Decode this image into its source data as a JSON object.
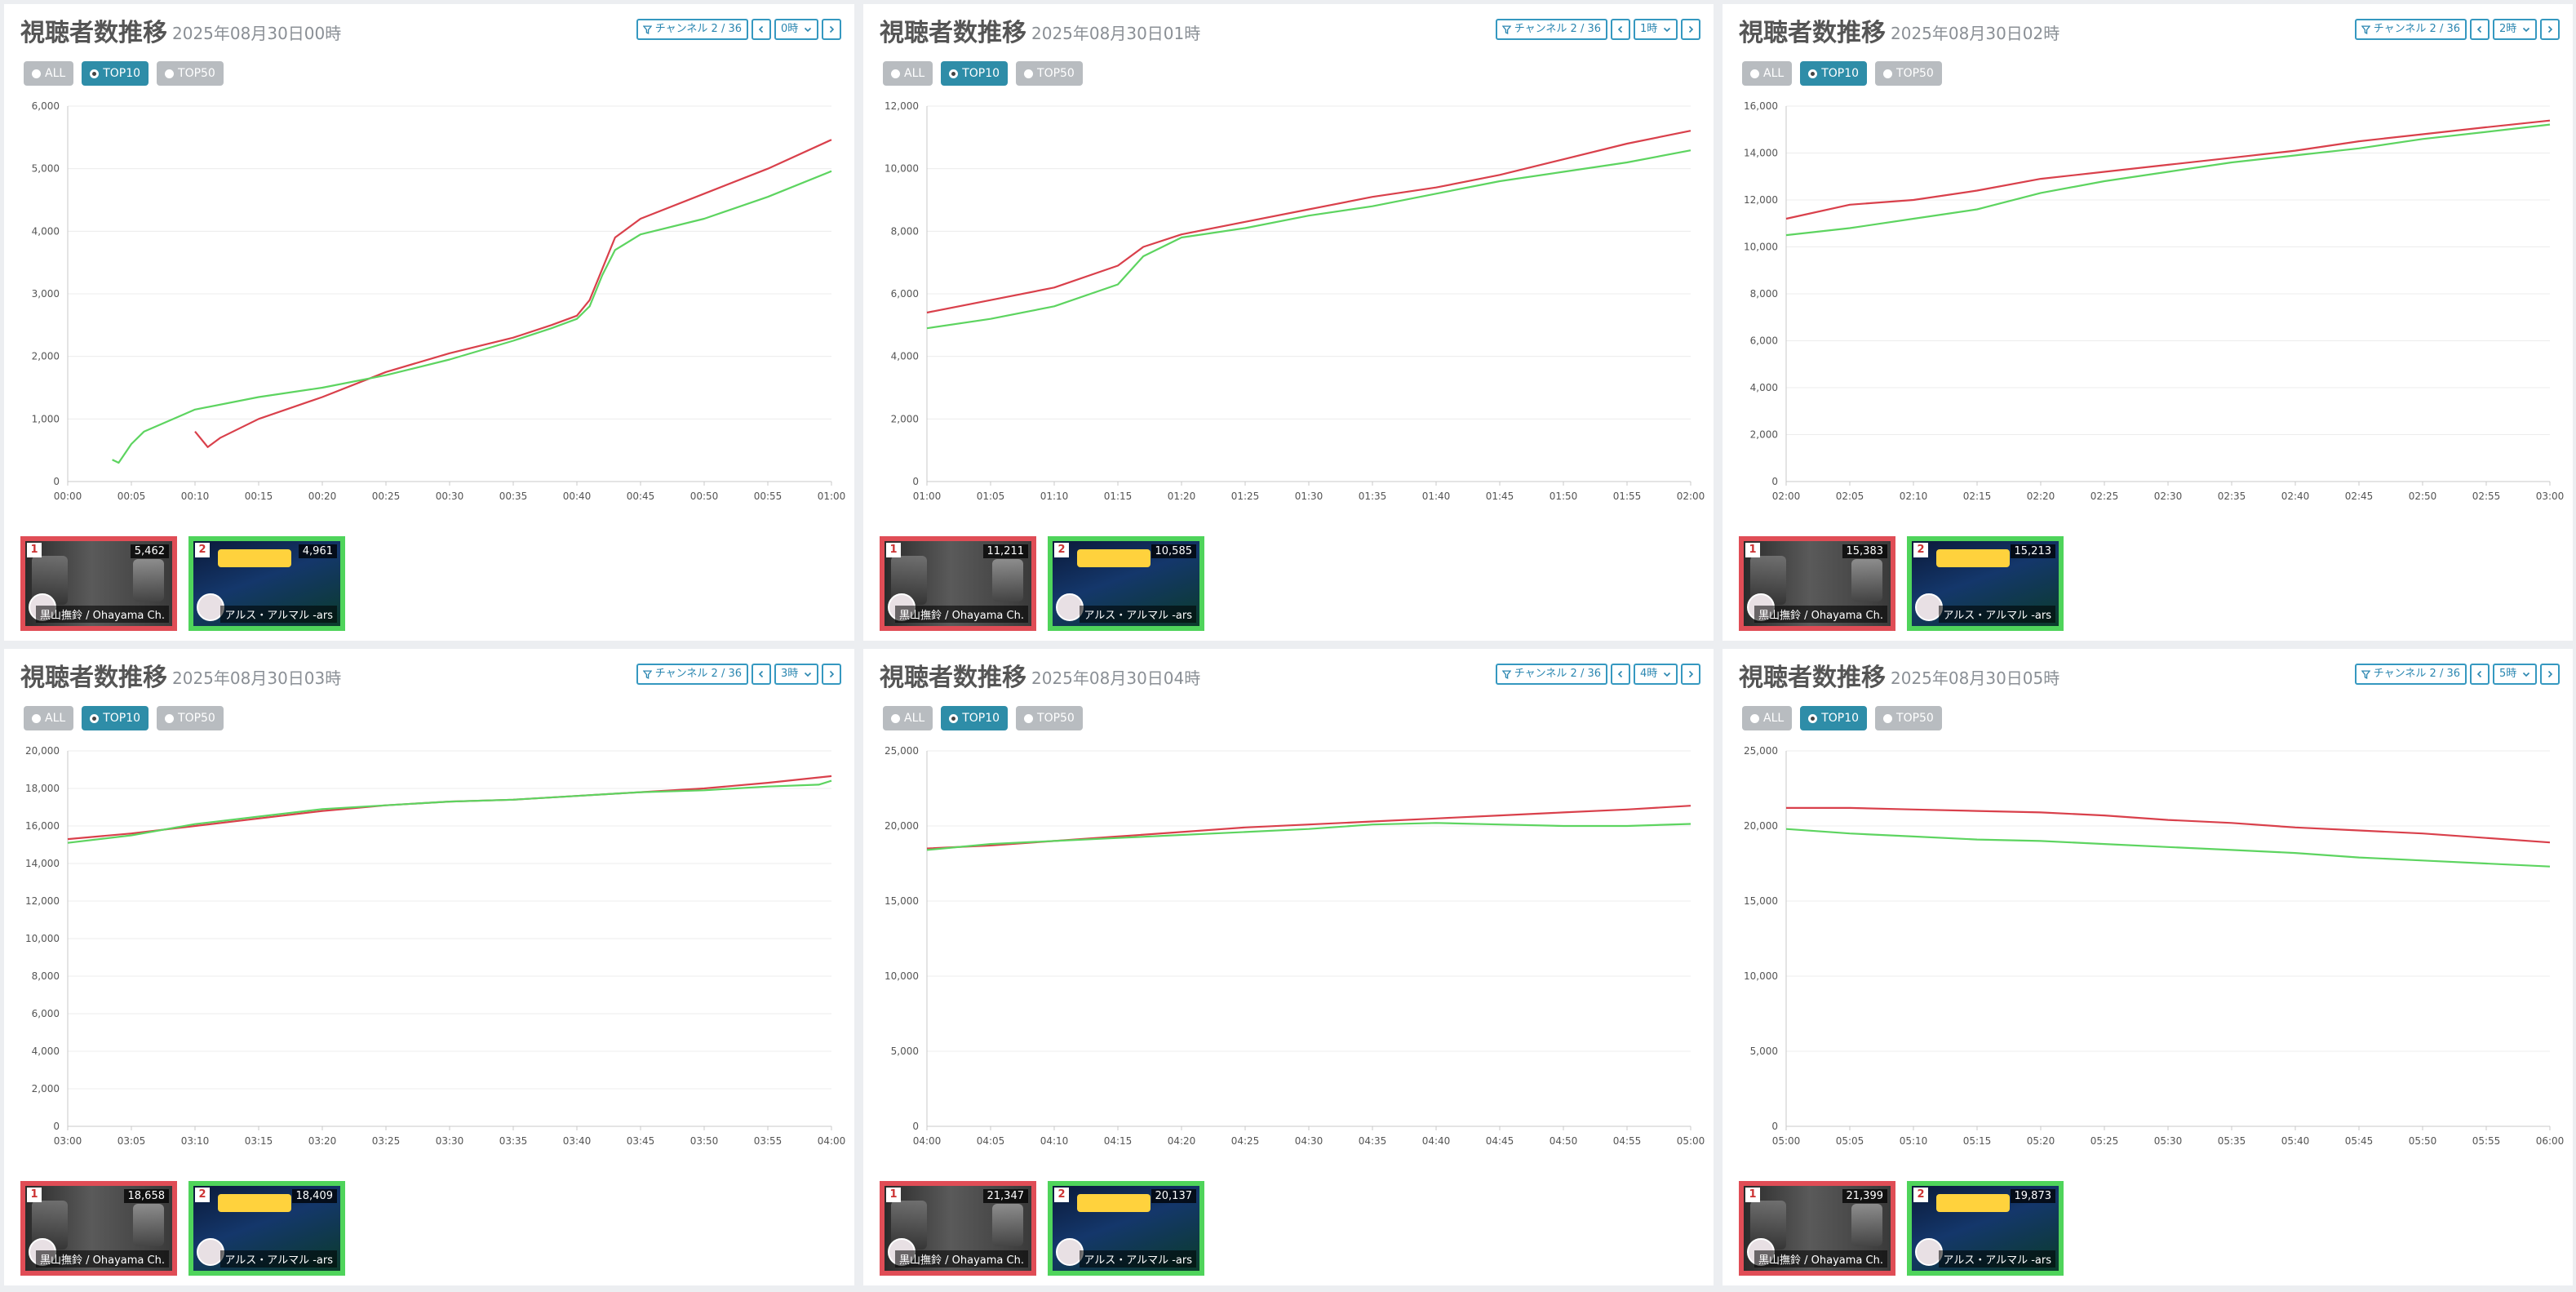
{
  "colors": {
    "series1": "#d9404b",
    "series2": "#5dd460",
    "tab_active": "#2e8da8",
    "tab_inactive": "#b8bcc0",
    "control": "#3598c0",
    "thumb1_border": "#e04d56",
    "thumb2_border": "#4fd45b"
  },
  "common": {
    "title": "視聴者数推移",
    "filter_label": "チャンネル 2 / 36",
    "filter_icon": "filter-icon",
    "prev_icon": "chevron-left-icon",
    "next_icon": "chevron-right-icon",
    "dropdown_icon": "chevron-down-icon",
    "tabs": [
      "ALL",
      "TOP10",
      "TOP50"
    ],
    "active_tab": "TOP10"
  },
  "panels": [
    {
      "date": "2025年08月30日00時",
      "hour_label": "0時",
      "channels": [
        {
          "rank": "1",
          "viewers": "5,462",
          "name": "黒山撫鈴 / Ohayama Ch."
        },
        {
          "rank": "2",
          "viewers": "4,961",
          "name": "アルス・アルマル -ars"
        }
      ]
    },
    {
      "date": "2025年08月30日01時",
      "hour_label": "1時",
      "channels": [
        {
          "rank": "1",
          "viewers": "11,211",
          "name": "黒山撫鈴 / Ohayama Ch."
        },
        {
          "rank": "2",
          "viewers": "10,585",
          "name": "アルス・アルマル -ars"
        }
      ]
    },
    {
      "date": "2025年08月30日02時",
      "hour_label": "2時",
      "channels": [
        {
          "rank": "1",
          "viewers": "15,383",
          "name": "黒山撫鈴 / Ohayama Ch."
        },
        {
          "rank": "2",
          "viewers": "15,213",
          "name": "アルス・アルマル -ars"
        }
      ]
    },
    {
      "date": "2025年08月30日03時",
      "hour_label": "3時",
      "channels": [
        {
          "rank": "1",
          "viewers": "18,658",
          "name": "黒山撫鈴 / Ohayama Ch."
        },
        {
          "rank": "2",
          "viewers": "18,409",
          "name": "アルス・アルマル -ars"
        }
      ]
    },
    {
      "date": "2025年08月30日04時",
      "hour_label": "4時",
      "channels": [
        {
          "rank": "1",
          "viewers": "21,347",
          "name": "黒山撫鈴 / Ohayama Ch."
        },
        {
          "rank": "2",
          "viewers": "20,137",
          "name": "アルス・アルマル -ars"
        }
      ]
    },
    {
      "date": "2025年08月30日05時",
      "hour_label": "5時",
      "channels": [
        {
          "rank": "1",
          "viewers": "21,399",
          "name": "黒山撫鈴 / Ohayama Ch."
        },
        {
          "rank": "2",
          "viewers": "19,873",
          "name": "アルス・アルマル -ars"
        }
      ]
    }
  ],
  "chart_data": [
    {
      "type": "line",
      "title": "視聴者数推移 2025年08月30日00時",
      "grid": true,
      "x_ticks": [
        "00:00",
        "00:05",
        "00:10",
        "00:15",
        "00:20",
        "00:25",
        "00:30",
        "00:35",
        "00:40",
        "00:45",
        "00:50",
        "00:55",
        "01:00"
      ],
      "y_ticks": [
        "0",
        "1,000",
        "2,000",
        "3,000",
        "4,000",
        "5,000",
        "6,000"
      ],
      "ylim": [
        0,
        6000
      ],
      "series": [
        {
          "color": "#d9404b",
          "x": [
            10,
            11,
            12,
            15,
            20,
            25,
            30,
            35,
            38,
            40,
            41,
            42,
            43,
            45,
            50,
            55,
            60
          ],
          "y": [
            800,
            550,
            700,
            1000,
            1350,
            1750,
            2050,
            2300,
            2500,
            2650,
            2900,
            3400,
            3900,
            4200,
            4600,
            5000,
            5462
          ]
        },
        {
          "color": "#5dd460",
          "x": [
            3.5,
            4,
            5,
            6,
            10,
            15,
            20,
            25,
            30,
            35,
            38,
            40,
            41,
            42,
            43,
            45,
            50,
            55,
            60
          ],
          "y": [
            350,
            300,
            600,
            800,
            1150,
            1350,
            1500,
            1700,
            1950,
            2250,
            2450,
            2600,
            2800,
            3300,
            3700,
            3950,
            4200,
            4550,
            4961
          ]
        }
      ]
    },
    {
      "type": "line",
      "title": "視聴者数推移 2025年08月30日01時",
      "grid": true,
      "x_ticks": [
        "01:00",
        "01:05",
        "01:10",
        "01:15",
        "01:20",
        "01:25",
        "01:30",
        "01:35",
        "01:40",
        "01:45",
        "01:50",
        "01:55",
        "02:00"
      ],
      "y_ticks": [
        "0",
        "2,000",
        "4,000",
        "6,000",
        "8,000",
        "10,000",
        "12,000"
      ],
      "ylim": [
        0,
        12000
      ],
      "series": [
        {
          "color": "#d9404b",
          "x": [
            0,
            5,
            10,
            15,
            17,
            20,
            25,
            30,
            35,
            40,
            45,
            50,
            55,
            60
          ],
          "y": [
            5400,
            5800,
            6200,
            6900,
            7500,
            7900,
            8300,
            8700,
            9100,
            9400,
            9800,
            10300,
            10800,
            11211
          ]
        },
        {
          "color": "#5dd460",
          "x": [
            0,
            5,
            10,
            15,
            17,
            20,
            25,
            30,
            35,
            40,
            45,
            50,
            55,
            60
          ],
          "y": [
            4900,
            5200,
            5600,
            6300,
            7200,
            7800,
            8100,
            8500,
            8800,
            9200,
            9600,
            9900,
            10200,
            10585
          ]
        }
      ]
    },
    {
      "type": "line",
      "title": "視聴者数推移 2025年08月30日02時",
      "grid": true,
      "x_ticks": [
        "02:00",
        "02:05",
        "02:10",
        "02:15",
        "02:20",
        "02:25",
        "02:30",
        "02:35",
        "02:40",
        "02:45",
        "02:50",
        "02:55",
        "03:00"
      ],
      "y_ticks": [
        "0",
        "2,000",
        "4,000",
        "6,000",
        "8,000",
        "10,000",
        "12,000",
        "14,000",
        "16,000"
      ],
      "ylim": [
        0,
        16000
      ],
      "series": [
        {
          "color": "#d9404b",
          "x": [
            0,
            5,
            10,
            15,
            20,
            25,
            30,
            35,
            40,
            45,
            50,
            55,
            60
          ],
          "y": [
            11200,
            11800,
            12000,
            12400,
            12900,
            13200,
            13500,
            13800,
            14100,
            14500,
            14800,
            15100,
            15383
          ]
        },
        {
          "color": "#5dd460",
          "x": [
            0,
            5,
            10,
            15,
            20,
            25,
            30,
            35,
            40,
            45,
            50,
            55,
            60
          ],
          "y": [
            10500,
            10800,
            11200,
            11600,
            12300,
            12800,
            13200,
            13600,
            13900,
            14200,
            14600,
            14900,
            15213
          ]
        }
      ]
    },
    {
      "type": "line",
      "title": "視聴者数推移 2025年08月30日03時",
      "grid": true,
      "x_ticks": [
        "03:00",
        "03:05",
        "03:10",
        "03:15",
        "03:20",
        "03:25",
        "03:30",
        "03:35",
        "03:40",
        "03:45",
        "03:50",
        "03:55",
        "04:00"
      ],
      "y_ticks": [
        "0",
        "2,000",
        "4,000",
        "6,000",
        "8,000",
        "10,000",
        "12,000",
        "14,000",
        "16,000",
        "18,000",
        "20,000"
      ],
      "ylim": [
        0,
        20000
      ],
      "series": [
        {
          "color": "#d9404b",
          "x": [
            0,
            5,
            10,
            15,
            20,
            25,
            30,
            35,
            40,
            45,
            50,
            55,
            60
          ],
          "y": [
            15300,
            15600,
            16000,
            16400,
            16800,
            17100,
            17300,
            17400,
            17600,
            17800,
            18000,
            18300,
            18658
          ]
        },
        {
          "color": "#5dd460",
          "x": [
            0,
            5,
            10,
            15,
            20,
            25,
            30,
            35,
            40,
            45,
            50,
            55,
            59,
            60
          ],
          "y": [
            15100,
            15500,
            16100,
            16500,
            16900,
            17100,
            17300,
            17400,
            17600,
            17800,
            17900,
            18100,
            18200,
            18409
          ]
        }
      ]
    },
    {
      "type": "line",
      "title": "視聴者数推移 2025年08月30日04時",
      "grid": true,
      "x_ticks": [
        "04:00",
        "04:05",
        "04:10",
        "04:15",
        "04:20",
        "04:25",
        "04:30",
        "04:35",
        "04:40",
        "04:45",
        "04:50",
        "04:55",
        "05:00"
      ],
      "y_ticks": [
        "0",
        "5,000",
        "10,000",
        "15,000",
        "20,000",
        "25,000"
      ],
      "ylim": [
        0,
        25000
      ],
      "series": [
        {
          "color": "#d9404b",
          "x": [
            0,
            5,
            10,
            15,
            20,
            25,
            30,
            35,
            40,
            45,
            50,
            55,
            60
          ],
          "y": [
            18500,
            18700,
            19000,
            19300,
            19600,
            19900,
            20100,
            20300,
            20500,
            20700,
            20900,
            21100,
            21347
          ]
        },
        {
          "color": "#5dd460",
          "x": [
            0,
            5,
            10,
            15,
            20,
            25,
            30,
            35,
            40,
            45,
            50,
            55,
            60
          ],
          "y": [
            18400,
            18800,
            19000,
            19200,
            19400,
            19600,
            19800,
            20100,
            20200,
            20100,
            20000,
            20000,
            20137
          ]
        }
      ]
    },
    {
      "type": "line",
      "title": "視聴者数推移 2025年08月30日05時",
      "grid": true,
      "x_ticks": [
        "05:00",
        "05:05",
        "05:10",
        "05:15",
        "05:20",
        "05:25",
        "05:30",
        "05:35",
        "05:40",
        "05:45",
        "05:50",
        "05:55",
        "06:00"
      ],
      "y_ticks": [
        "0",
        "5,000",
        "10,000",
        "15,000",
        "20,000",
        "25,000"
      ],
      "ylim": [
        0,
        25000
      ],
      "series": [
        {
          "color": "#d9404b",
          "x": [
            0,
            5,
            10,
            15,
            20,
            25,
            30,
            35,
            40,
            45,
            50,
            55,
            60
          ],
          "y": [
            21200,
            21200,
            21100,
            21000,
            20900,
            20700,
            20400,
            20200,
            19900,
            19700,
            19500,
            19200,
            18900
          ]
        },
        {
          "color": "#5dd460",
          "x": [
            0,
            5,
            10,
            15,
            20,
            25,
            30,
            35,
            40,
            45,
            50,
            55,
            60
          ],
          "y": [
            19800,
            19500,
            19300,
            19100,
            19000,
            18800,
            18600,
            18400,
            18200,
            17900,
            17700,
            17500,
            17300
          ]
        }
      ]
    }
  ]
}
